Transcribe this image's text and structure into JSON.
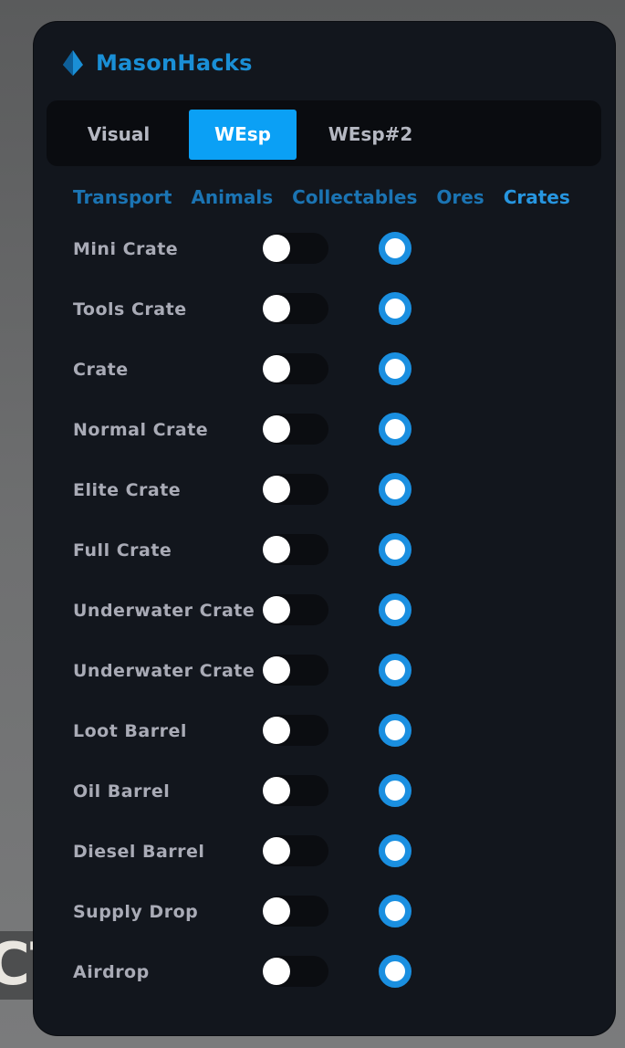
{
  "background": {
    "text": "CT"
  },
  "app": {
    "title": "MasonHacks",
    "logo_icon": "diamond-drop-icon",
    "accent": "#0ba0f5"
  },
  "tabs": [
    {
      "label": "Visual",
      "active": false
    },
    {
      "label": "WEsp",
      "active": true
    },
    {
      "label": "WEsp#2",
      "active": false
    }
  ],
  "categories": [
    {
      "label": "Transport",
      "active": false
    },
    {
      "label": "Animals",
      "active": false
    },
    {
      "label": "Collectables",
      "active": false
    },
    {
      "label": "Ores",
      "active": false
    },
    {
      "label": "Crates",
      "active": true
    }
  ],
  "items": [
    {
      "label": "Mini Crate",
      "toggle": false,
      "radio": true
    },
    {
      "label": "Tools Crate",
      "toggle": false,
      "radio": true
    },
    {
      "label": "Crate",
      "toggle": false,
      "radio": true
    },
    {
      "label": "Normal Crate",
      "toggle": false,
      "radio": true
    },
    {
      "label": "Elite Crate",
      "toggle": false,
      "radio": true
    },
    {
      "label": "Full Crate",
      "toggle": false,
      "radio": true
    },
    {
      "label": "Underwater Crate",
      "toggle": false,
      "radio": true
    },
    {
      "label": "Underwater Crate",
      "toggle": false,
      "radio": true
    },
    {
      "label": "Loot Barrel",
      "toggle": false,
      "radio": true
    },
    {
      "label": "Oil Barrel",
      "toggle": false,
      "radio": true
    },
    {
      "label": "Diesel Barrel",
      "toggle": false,
      "radio": true
    },
    {
      "label": "Supply Drop",
      "toggle": false,
      "radio": true
    },
    {
      "label": "Airdrop",
      "toggle": false,
      "radio": true
    }
  ]
}
